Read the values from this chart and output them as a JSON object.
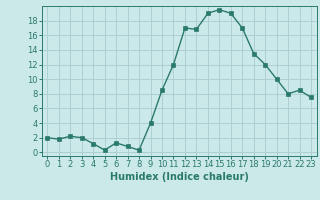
{
  "x": [
    0,
    1,
    2,
    3,
    4,
    5,
    6,
    7,
    8,
    9,
    10,
    11,
    12,
    13,
    14,
    15,
    16,
    17,
    18,
    19,
    20,
    21,
    22,
    23
  ],
  "y": [
    2,
    1.8,
    2.2,
    2,
    1.2,
    0.3,
    1.3,
    0.8,
    0.3,
    4,
    8.5,
    12,
    17,
    16.8,
    19,
    19.5,
    19,
    17,
    13.5,
    12,
    10,
    8,
    8.5,
    7.5
  ],
  "line_color": "#2a7a6a",
  "marker": "s",
  "marker_size": 2.5,
  "bg_color": "#cce9e9",
  "grid_color": "#aacccc",
  "xlabel": "Humidex (Indice chaleur)",
  "xlim": [
    -0.5,
    23.5
  ],
  "ylim": [
    -0.5,
    20
  ],
  "yticks": [
    0,
    2,
    4,
    6,
    8,
    10,
    12,
    14,
    16,
    18
  ],
  "xticks": [
    0,
    1,
    2,
    3,
    4,
    5,
    6,
    7,
    8,
    9,
    10,
    11,
    12,
    13,
    14,
    15,
    16,
    17,
    18,
    19,
    20,
    21,
    22,
    23
  ],
  "xtick_labels": [
    "0",
    "1",
    "2",
    "3",
    "4",
    "5",
    "6",
    "7",
    "8",
    "9",
    "10",
    "11",
    "12",
    "13",
    "14",
    "15",
    "16",
    "17",
    "18",
    "19",
    "20",
    "21",
    "22",
    "23"
  ],
  "tick_fontsize": 6,
  "xlabel_fontsize": 7,
  "label_color": "#2a7a6a"
}
